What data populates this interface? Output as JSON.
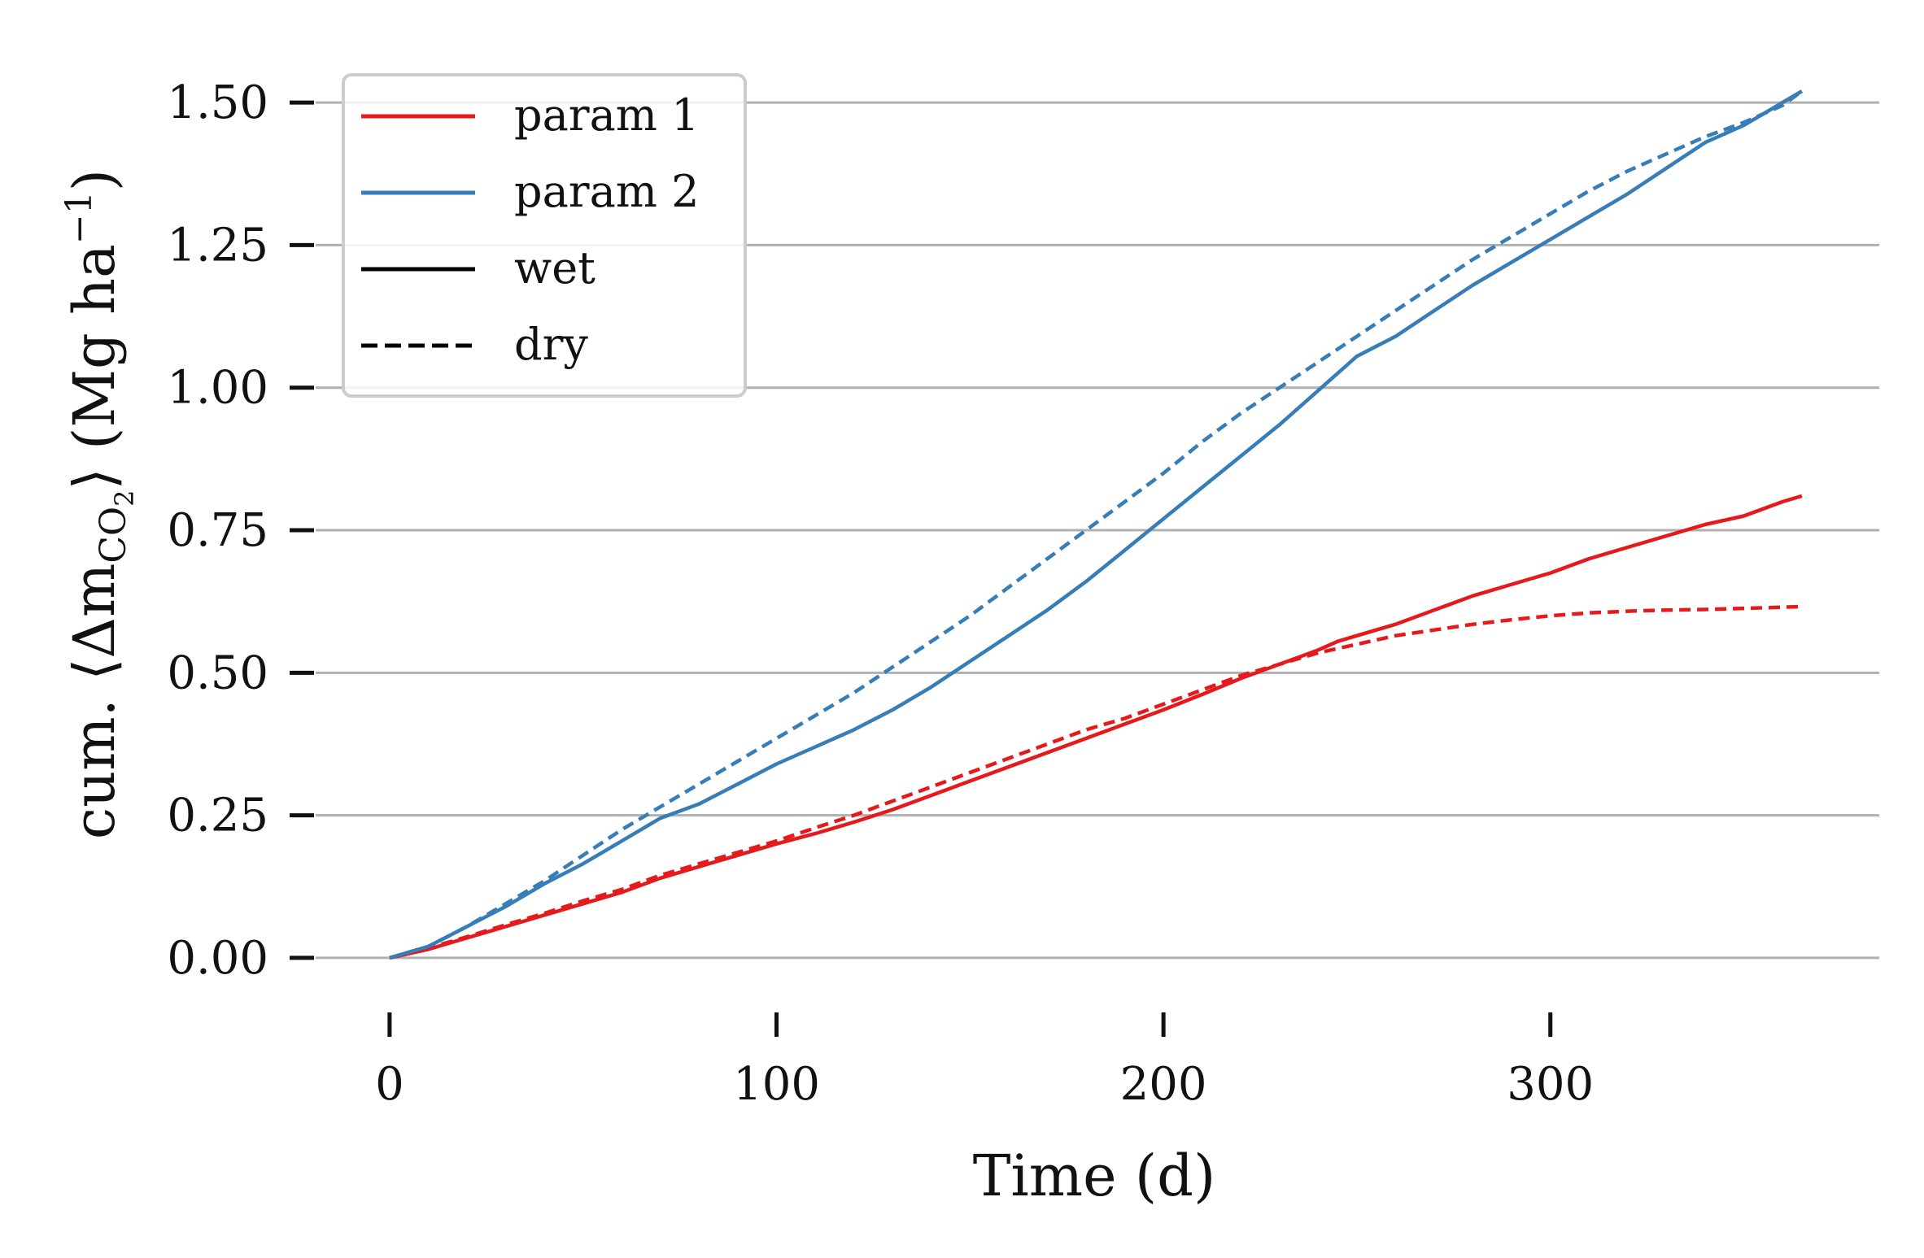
{
  "chart_data": {
    "type": "line",
    "xlabel": "Time (d)",
    "ylabel": "cum. ⟨Δm",
    "ylabel_sub": "CO",
    "ylabel_subsub": "2",
    "ylabel_tail": "⟩ (Mg ha",
    "ylabel_sup": "−1",
    "ylabel_close": ")",
    "xlim": [
      -25,
      385
    ],
    "ylim": [
      -0.06,
      1.58
    ],
    "xticks": [
      0,
      100,
      200,
      300
    ],
    "xtick_labels": [
      "0",
      "100",
      "200",
      "300"
    ],
    "yticks": [
      0.0,
      0.25,
      0.5,
      0.75,
      1.0,
      1.25,
      1.5
    ],
    "ytick_labels": [
      "0.00",
      "0.25",
      "0.50",
      "0.75",
      "1.00",
      "1.25",
      "1.50"
    ],
    "grid": "horizontal",
    "legend_position": "top-left",
    "legend": [
      {
        "label": "param 1",
        "color": "#e41a1c",
        "style": "solid"
      },
      {
        "label": "param 2",
        "color": "#377eb8",
        "style": "solid"
      },
      {
        "label": "wet",
        "color": "#000000",
        "style": "solid"
      },
      {
        "label": "dry",
        "color": "#000000",
        "style": "dashed"
      }
    ],
    "series": [
      {
        "name": "param 1",
        "condition": "wet",
        "color": "#e41a1c",
        "dash": "solid",
        "x": [
          0,
          10,
          20,
          30,
          40,
          50,
          60,
          70,
          80,
          90,
          100,
          110,
          120,
          130,
          140,
          150,
          160,
          170,
          180,
          190,
          200,
          210,
          220,
          230,
          240,
          245,
          250,
          260,
          270,
          280,
          290,
          300,
          310,
          320,
          330,
          340,
          350,
          360,
          365
        ],
        "y": [
          0.0,
          0.015,
          0.035,
          0.055,
          0.075,
          0.095,
          0.115,
          0.14,
          0.16,
          0.18,
          0.2,
          0.218,
          0.238,
          0.26,
          0.285,
          0.31,
          0.335,
          0.36,
          0.385,
          0.41,
          0.435,
          0.462,
          0.49,
          0.515,
          0.54,
          0.555,
          0.565,
          0.585,
          0.61,
          0.635,
          0.655,
          0.675,
          0.7,
          0.72,
          0.74,
          0.76,
          0.775,
          0.8,
          0.81
        ]
      },
      {
        "name": "param 1",
        "condition": "dry",
        "color": "#e41a1c",
        "dash": "dashed",
        "x": [
          0,
          10,
          20,
          30,
          40,
          50,
          60,
          70,
          80,
          90,
          100,
          110,
          120,
          130,
          140,
          150,
          160,
          170,
          180,
          190,
          200,
          210,
          220,
          230,
          240,
          250,
          260,
          270,
          280,
          290,
          300,
          310,
          320,
          330,
          340,
          350,
          360,
          365
        ],
        "y": [
          0.0,
          0.017,
          0.037,
          0.058,
          0.078,
          0.1,
          0.12,
          0.145,
          0.165,
          0.185,
          0.205,
          0.228,
          0.25,
          0.275,
          0.3,
          0.325,
          0.35,
          0.375,
          0.4,
          0.42,
          0.445,
          0.47,
          0.495,
          0.515,
          0.535,
          0.55,
          0.565,
          0.575,
          0.585,
          0.593,
          0.6,
          0.605,
          0.608,
          0.61,
          0.611,
          0.613,
          0.615,
          0.616
        ]
      },
      {
        "name": "param 2",
        "condition": "wet",
        "color": "#377eb8",
        "dash": "solid",
        "x": [
          0,
          10,
          20,
          30,
          40,
          50,
          60,
          70,
          80,
          90,
          100,
          110,
          120,
          130,
          140,
          150,
          160,
          170,
          180,
          190,
          200,
          210,
          220,
          230,
          240,
          245,
          250,
          260,
          270,
          280,
          290,
          300,
          310,
          320,
          330,
          340,
          350,
          360,
          365
        ],
        "y": [
          0.0,
          0.02,
          0.055,
          0.09,
          0.13,
          0.165,
          0.205,
          0.245,
          0.27,
          0.305,
          0.34,
          0.37,
          0.4,
          0.435,
          0.475,
          0.52,
          0.565,
          0.61,
          0.66,
          0.715,
          0.77,
          0.825,
          0.88,
          0.935,
          0.995,
          1.025,
          1.055,
          1.09,
          1.135,
          1.18,
          1.22,
          1.26,
          1.3,
          1.34,
          1.385,
          1.43,
          1.46,
          1.5,
          1.52
        ]
      },
      {
        "name": "param 2",
        "condition": "dry",
        "color": "#377eb8",
        "dash": "dashed",
        "x": [
          0,
          10,
          20,
          30,
          40,
          50,
          60,
          70,
          80,
          90,
          100,
          110,
          120,
          130,
          140,
          150,
          160,
          170,
          180,
          190,
          200,
          210,
          220,
          230,
          240,
          250,
          260,
          270,
          280,
          290,
          300,
          310,
          320,
          330,
          340,
          350,
          360,
          365
        ],
        "y": [
          0.0,
          0.02,
          0.055,
          0.095,
          0.135,
          0.18,
          0.225,
          0.265,
          0.305,
          0.345,
          0.385,
          0.425,
          0.465,
          0.51,
          0.555,
          0.6,
          0.65,
          0.7,
          0.75,
          0.8,
          0.85,
          0.905,
          0.955,
          1.0,
          1.045,
          1.09,
          1.135,
          1.18,
          1.225,
          1.265,
          1.305,
          1.345,
          1.38,
          1.41,
          1.44,
          1.465,
          1.495,
          1.52
        ]
      }
    ]
  }
}
